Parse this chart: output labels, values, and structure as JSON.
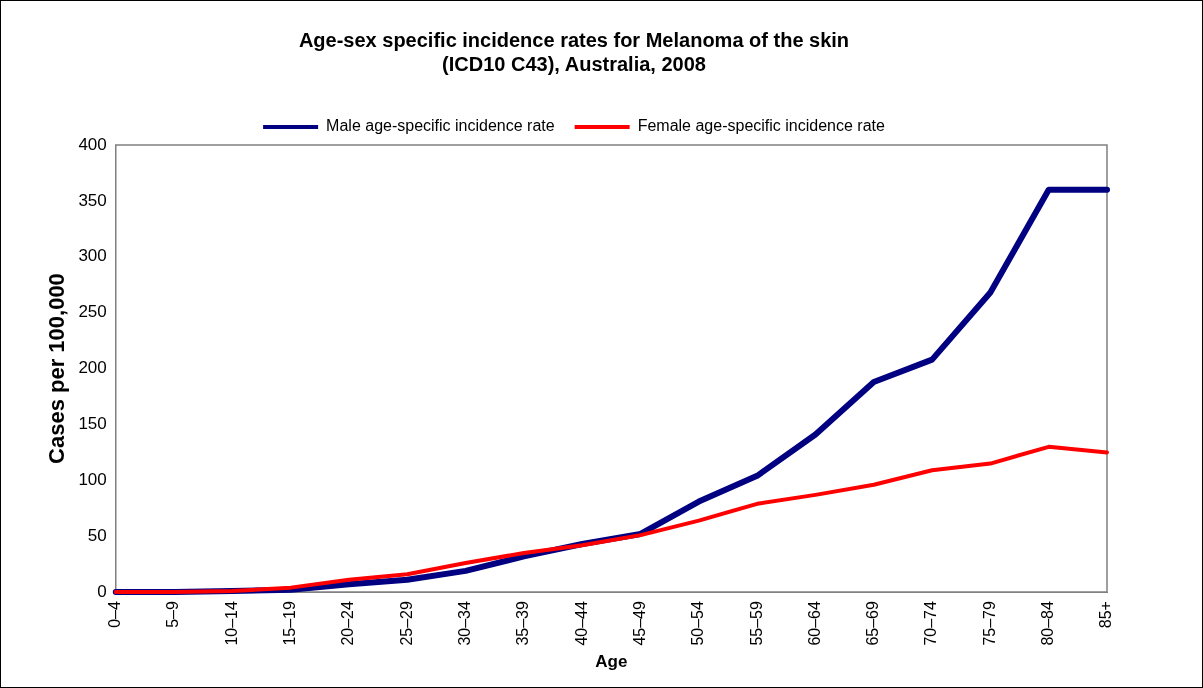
{
  "chart_data": {
    "type": "line",
    "title": "Age-sex specific incidence rates for Melanoma of the skin\n(ICD10 C43), Australia, 2008",
    "xlabel": "Age",
    "ylabel": "Cases per 100,000",
    "categories": [
      "0–4",
      "5–9",
      "10–14",
      "15–19",
      "20–24",
      "25–29",
      "30–34",
      "35–39",
      "40–44",
      "45–49",
      "50–54",
      "55–59",
      "60–64",
      "65–69",
      "70–74",
      "75–79",
      "80–84",
      "85+"
    ],
    "series": [
      {
        "name": "Male age-specific incidence rate",
        "color": "#000080",
        "values": [
          0,
          0,
          1,
          2,
          7,
          11,
          19,
          32,
          43,
          52,
          81,
          104,
          141,
          188,
          208,
          268,
          360,
          360
        ]
      },
      {
        "name": "Female age-specific incidence rate",
        "color": "#ff0000",
        "values": [
          0,
          0,
          1,
          4,
          11,
          16,
          26,
          35,
          42,
          51,
          64,
          79,
          87,
          96,
          109,
          115,
          130,
          125
        ]
      }
    ],
    "ylim": [
      0,
      400
    ],
    "yticks": [
      0,
      50,
      100,
      150,
      200,
      250,
      300,
      350,
      400
    ],
    "grid": false,
    "legend": "top",
    "marker": "none",
    "line_style": "solid"
  }
}
